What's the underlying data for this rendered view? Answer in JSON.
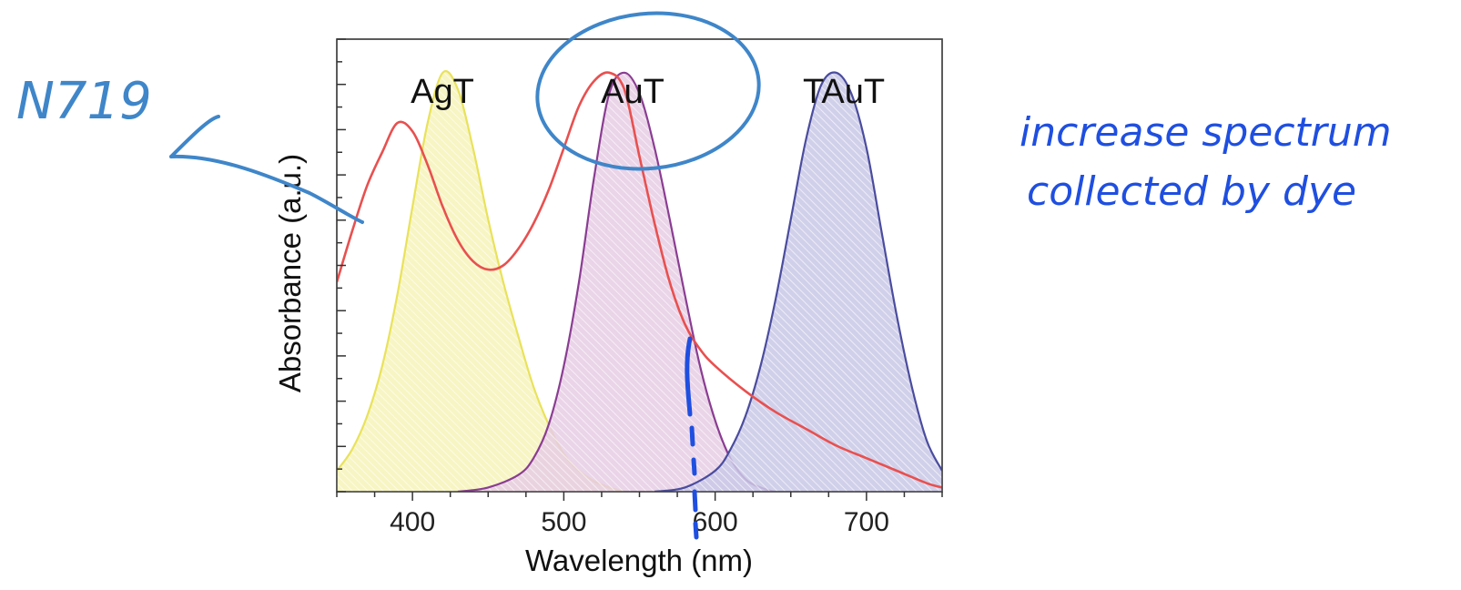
{
  "chart_data": {
    "type": "area",
    "title": "",
    "xlabel": "Wavelength (nm)",
    "ylabel": "Absorbance (a.u.)",
    "xlim": [
      350,
      750
    ],
    "ylim": [
      0,
      1.08
    ],
    "x_ticks": [
      400,
      500,
      600,
      700
    ],
    "y_ticks_labeled": false,
    "grid": false,
    "legend": "none",
    "series": [
      {
        "name": "AgT",
        "style": "filled-hatched",
        "color": "#e9e25a",
        "fill": "#f6f3b8",
        "x": [
          350,
          360,
          370,
          380,
          390,
          400,
          410,
          420,
          430,
          440,
          450,
          460,
          470,
          480,
          490,
          500,
          510,
          520,
          530,
          540
        ],
        "y": [
          0.05,
          0.1,
          0.18,
          0.3,
          0.47,
          0.68,
          0.88,
          1.0,
          0.96,
          0.82,
          0.65,
          0.5,
          0.37,
          0.25,
          0.16,
          0.09,
          0.05,
          0.025,
          0.01,
          0.0
        ]
      },
      {
        "name": "AuT",
        "style": "filled-hatched",
        "color": "#8a3d92",
        "fill": "#e6cde4",
        "x": [
          430,
          450,
          470,
          480,
          490,
          500,
          510,
          520,
          530,
          540,
          550,
          560,
          570,
          580,
          590,
          600,
          610,
          620,
          630,
          640,
          650
        ],
        "y": [
          0.0,
          0.01,
          0.04,
          0.08,
          0.16,
          0.3,
          0.5,
          0.75,
          0.95,
          1.0,
          0.95,
          0.82,
          0.65,
          0.47,
          0.3,
          0.17,
          0.08,
          0.03,
          0.01,
          0.0,
          0.0
        ]
      },
      {
        "name": "TAuT",
        "style": "filled-hatched",
        "color": "#4a4c9e",
        "fill": "#c9c8e6",
        "x": [
          560,
          580,
          600,
          610,
          620,
          630,
          640,
          650,
          660,
          670,
          680,
          690,
          700,
          710,
          720,
          730,
          740,
          750
        ],
        "y": [
          0.0,
          0.01,
          0.05,
          0.1,
          0.18,
          0.3,
          0.46,
          0.65,
          0.84,
          0.97,
          1.0,
          0.95,
          0.82,
          0.62,
          0.42,
          0.25,
          0.12,
          0.05
        ]
      },
      {
        "name": "N719",
        "style": "line",
        "color": "#e8504f",
        "x": [
          350,
          360,
          370,
          380,
          390,
          400,
          410,
          420,
          430,
          440,
          450,
          460,
          470,
          480,
          490,
          500,
          510,
          520,
          530,
          540,
          550,
          560,
          570,
          580,
          590,
          600,
          620,
          640,
          660,
          680,
          700,
          720,
          740,
          750
        ],
        "y": [
          0.5,
          0.62,
          0.73,
          0.81,
          0.88,
          0.86,
          0.78,
          0.68,
          0.6,
          0.55,
          0.53,
          0.54,
          0.58,
          0.64,
          0.72,
          0.82,
          0.92,
          0.98,
          1.0,
          0.96,
          0.8,
          0.64,
          0.5,
          0.4,
          0.34,
          0.3,
          0.24,
          0.19,
          0.15,
          0.11,
          0.08,
          0.05,
          0.02,
          0.01
        ]
      }
    ]
  },
  "annotations": {
    "handwritten_left": "N719",
    "handwritten_right_line1": "increase spectrum",
    "handwritten_right_line2": "collected by dye"
  },
  "colors": {
    "pen_light": "#3f86c9",
    "pen_dark": "#1f4fe0",
    "axis": "#333333"
  }
}
